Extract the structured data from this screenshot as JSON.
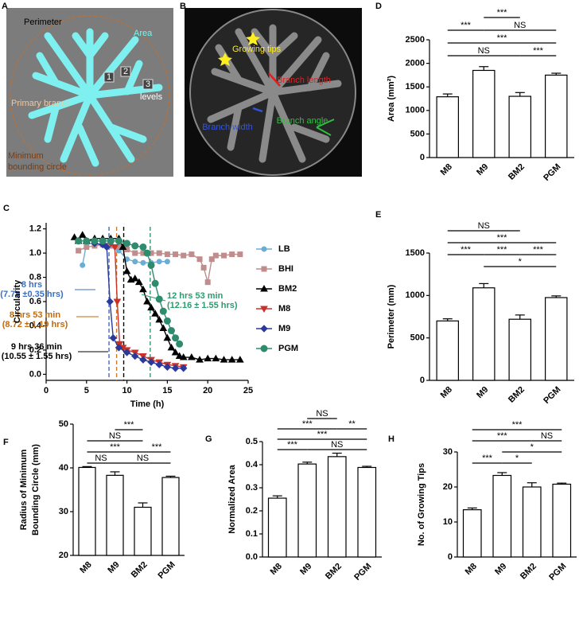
{
  "images": [
    {
      "panel": "A",
      "labels": [
        "Perimeter",
        "Area",
        "1",
        "2",
        "3",
        "levels",
        "Primary branch",
        "Minimum",
        "bounding circle"
      ]
    },
    {
      "panel": "B",
      "labels": [
        "Growing tips",
        "Branch length",
        "Branch width",
        "Branch angle"
      ]
    }
  ],
  "chart_data": [
    {
      "type": "bar",
      "panel": "D",
      "ylabel": "Area (mm²)",
      "categories": [
        "M8",
        "M9",
        "BM2",
        "PGM"
      ],
      "values": [
        1290,
        1850,
        1300,
        1750
      ],
      "errors": [
        60,
        80,
        80,
        40
      ],
      "ylim": [
        0,
        2500
      ],
      "yticks": [
        0,
        500,
        1000,
        1500,
        2000,
        2500
      ],
      "brackets": [
        [
          {
            "from": 1,
            "to": 2,
            "label": "***"
          }
        ],
        [
          {
            "from": 0,
            "to": 1,
            "label": "***"
          },
          {
            "from": 1,
            "to": 3,
            "label": "NS"
          }
        ],
        [
          {
            "from": 0,
            "to": 3,
            "label": "***"
          }
        ],
        [
          {
            "from": 0,
            "to": 2,
            "label": "NS"
          },
          {
            "from": 2,
            "to": 3,
            "label": "***"
          }
        ]
      ]
    },
    {
      "type": "line",
      "panel": "C",
      "xlabel": "Time (h)",
      "ylabel": "Circularity",
      "xlim": [
        0,
        25
      ],
      "xticks": [
        0,
        5,
        10,
        15,
        20,
        25
      ],
      "ylim": [
        -0.05,
        1.25
      ],
      "yticks": [
        {
          "value": 0,
          "label": "0.0"
        },
        0.2,
        0.4,
        0.6,
        0.8,
        {
          "value": 1,
          "label": "1.0"
        },
        1.2
      ],
      "series": [
        {
          "name": "LB",
          "color": "#6aaed6",
          "marker": "circle",
          "x": [
            4.5,
            5,
            6,
            7,
            8,
            9,
            10,
            11,
            12,
            13,
            14,
            15
          ],
          "values": [
            0.9,
            1.08,
            1.08,
            1.07,
            1.06,
            1.02,
            0.95,
            0.93,
            0.92,
            0.92,
            0.93,
            0.93
          ]
        },
        {
          "name": "BHI",
          "color": "#c08c8c",
          "marker": "square",
          "x": [
            4,
            5,
            6,
            7,
            8,
            9,
            10,
            11,
            12,
            13,
            14,
            15,
            16,
            17,
            18,
            19,
            19.5,
            20,
            20.5,
            21,
            22,
            23,
            24
          ],
          "values": [
            1.02,
            1.05,
            1.06,
            1.07,
            1.06,
            1.05,
            1.03,
            1.0,
            1.0,
            1.0,
            1.0,
            0.99,
            0.99,
            0.98,
            0.99,
            0.95,
            0.88,
            0.76,
            0.95,
            0.98,
            0.98,
            0.99,
            0.99
          ]
        },
        {
          "name": "BM2",
          "color": "#000000",
          "marker": "triangle",
          "x": [
            3.5,
            4,
            4.5,
            5,
            6,
            7,
            8,
            9,
            9.5,
            10,
            10.5,
            11,
            11.5,
            12,
            12.5,
            13,
            13.5,
            14,
            14.5,
            15,
            15.5,
            16,
            16.5,
            17,
            18,
            19,
            20,
            21,
            22,
            23,
            24
          ],
          "values": [
            1.13,
            1.1,
            1.15,
            1.1,
            1.12,
            1.12,
            1.12,
            1.12,
            1.05,
            0.85,
            0.78,
            0.79,
            0.76,
            0.7,
            0.6,
            0.55,
            0.5,
            0.45,
            0.38,
            0.3,
            0.22,
            0.18,
            0.15,
            0.14,
            0.14,
            0.12,
            0.13,
            0.13,
            0.12,
            0.12,
            0.12
          ]
        },
        {
          "name": "M8",
          "color": "#c8322a",
          "marker": "triangle-down",
          "x": [
            7,
            8,
            8.5,
            8.8,
            9.1,
            9.5,
            10,
            11,
            12,
            13,
            14,
            15,
            16,
            17
          ],
          "values": [
            1.08,
            1.08,
            1.05,
            0.6,
            0.25,
            0.22,
            0.2,
            0.18,
            0.15,
            0.12,
            0.1,
            0.08,
            0.07,
            0.06
          ]
        },
        {
          "name": "M9",
          "color": "#2a3a9a",
          "marker": "diamond",
          "x": [
            6,
            7,
            7.5,
            7.9,
            8.3,
            9,
            10,
            11,
            12,
            13,
            14,
            15,
            16,
            17
          ],
          "values": [
            1.08,
            1.07,
            1.05,
            0.6,
            0.3,
            0.22,
            0.18,
            0.15,
            0.12,
            0.1,
            0.08,
            0.06,
            0.05,
            0.05
          ]
        },
        {
          "name": "PGM",
          "color": "#2e8b6e",
          "marker": "circle",
          "x": [
            4,
            5,
            6,
            7,
            8,
            9,
            10,
            11,
            12,
            12.5,
            13,
            13.5,
            14,
            14.5,
            15,
            15.5,
            16,
            16.5
          ],
          "values": [
            1.1,
            1.1,
            1.1,
            1.1,
            1.1,
            1.1,
            1.08,
            1.06,
            1.05,
            1.0,
            0.9,
            0.75,
            0.62,
            0.52,
            0.44,
            0.36,
            0.3,
            0.25
          ]
        }
      ],
      "vlines": [
        {
          "x": 7.78,
          "color": "#3a6fc4"
        },
        {
          "x": 8.72,
          "color": "#d07a20"
        },
        {
          "x": 9.6,
          "color": "#000000"
        },
        {
          "x": 12.88,
          "color": "#2e9a6e"
        }
      ],
      "annotations": [
        {
          "lines": [
            "8 hrs",
            "(7.78 ±0.35 hrs)"
          ],
          "color": "#3a6fc4"
        },
        {
          "lines": [
            "8 hrs 53 min",
            "(8.72 ± 1.19 hrs)"
          ],
          "color": "#c06a10"
        },
        {
          "lines": [
            "9 hrs 36 min",
            "(10.55 ± 1.55 hrs)"
          ],
          "color": "#000000"
        },
        {
          "lines": [
            "12 hrs 53 min",
            "(12.16 ± 1.55 hrs)"
          ],
          "color": "#2e9a6e"
        }
      ]
    },
    {
      "type": "bar",
      "panel": "E",
      "ylabel": "Perimeter (mm)",
      "categories": [
        "M8",
        "M9",
        "BM2",
        "PGM"
      ],
      "values": [
        700,
        1090,
        720,
        975
      ],
      "errors": [
        25,
        50,
        50,
        20
      ],
      "ylim": [
        0,
        1500
      ],
      "yticks": [
        0,
        500,
        1000,
        1500
      ],
      "brackets": [
        [
          {
            "from": 0,
            "to": 2,
            "label": "NS"
          }
        ],
        [
          {
            "from": 0,
            "to": 3,
            "label": "***"
          }
        ],
        [
          {
            "from": 0,
            "to": 1,
            "label": "***"
          },
          {
            "from": 1,
            "to": 2,
            "label": "***"
          },
          {
            "from": 2,
            "to": 3,
            "label": "***"
          }
        ],
        [
          {
            "from": 1,
            "to": 3,
            "label": "*"
          }
        ]
      ]
    },
    {
      "type": "bar",
      "panel": "F",
      "ylabel": [
        "Radius of Minimum",
        "Bounding Circle (mm)"
      ],
      "categories": [
        "M8",
        "M9",
        "BM2",
        "PGM"
      ],
      "values": [
        40.1,
        38.3,
        31.0,
        37.8
      ],
      "errors": [
        0.2,
        0.8,
        1.0,
        0.3
      ],
      "ylim": [
        20,
        50
      ],
      "yticks": [
        20,
        30,
        40,
        50
      ],
      "brackets": [
        [
          {
            "from": 1,
            "to": 2,
            "label": "***"
          }
        ],
        [
          {
            "from": 0,
            "to": 2,
            "label": "NS"
          }
        ],
        [
          {
            "from": 0,
            "to": 2,
            "label": "***"
          },
          {
            "from": 2,
            "to": 3,
            "label": "***"
          }
        ],
        [
          {
            "from": 0,
            "to": 1,
            "label": "NS"
          },
          {
            "from": 1,
            "to": 3,
            "label": "NS"
          }
        ]
      ]
    },
    {
      "type": "bar",
      "panel": "G",
      "ylabel": "Normalized Area",
      "categories": [
        "M8",
        "M9",
        "BM2",
        "PGM"
      ],
      "values": [
        0.255,
        0.403,
        0.435,
        0.388
      ],
      "errors": [
        0.01,
        0.008,
        0.015,
        0.005
      ],
      "ylim": [
        0,
        0.5
      ],
      "yticks": [
        {
          "value": 0,
          "label": "0.0"
        },
        0.1,
        0.2,
        0.3,
        0.4,
        0.5
      ],
      "brackets": [
        [
          {
            "from": 1,
            "to": 2,
            "label": "NS"
          }
        ],
        [
          {
            "from": 0,
            "to": 2,
            "label": "***"
          },
          {
            "from": 2,
            "to": 3,
            "label": "**"
          }
        ],
        [
          {
            "from": 0,
            "to": 3,
            "label": "***"
          }
        ],
        [
          {
            "from": 0,
            "to": 1,
            "label": "***"
          },
          {
            "from": 1,
            "to": 3,
            "label": "NS"
          }
        ]
      ]
    },
    {
      "type": "bar",
      "panel": "H",
      "ylabel": "No. of Growing Tips",
      "categories": [
        "M8",
        "M9",
        "BM2",
        "PGM"
      ],
      "values": [
        13.5,
        23.3,
        20,
        20.8
      ],
      "errors": [
        0.5,
        0.8,
        1.2,
        0.3
      ],
      "ylim": [
        0,
        30
      ],
      "yticks": [
        0,
        10,
        20,
        30
      ],
      "brackets": [
        [
          {
            "from": 0,
            "to": 3,
            "label": "***"
          }
        ],
        [
          {
            "from": 0,
            "to": 2,
            "label": "***"
          },
          {
            "from": 2,
            "to": 3,
            "label": "NS"
          }
        ],
        [
          {
            "from": 1,
            "to": 3,
            "label": "*"
          }
        ],
        [
          {
            "from": 0,
            "to": 1,
            "label": "***"
          },
          {
            "from": 1,
            "to": 2,
            "label": "*"
          }
        ]
      ]
    }
  ]
}
